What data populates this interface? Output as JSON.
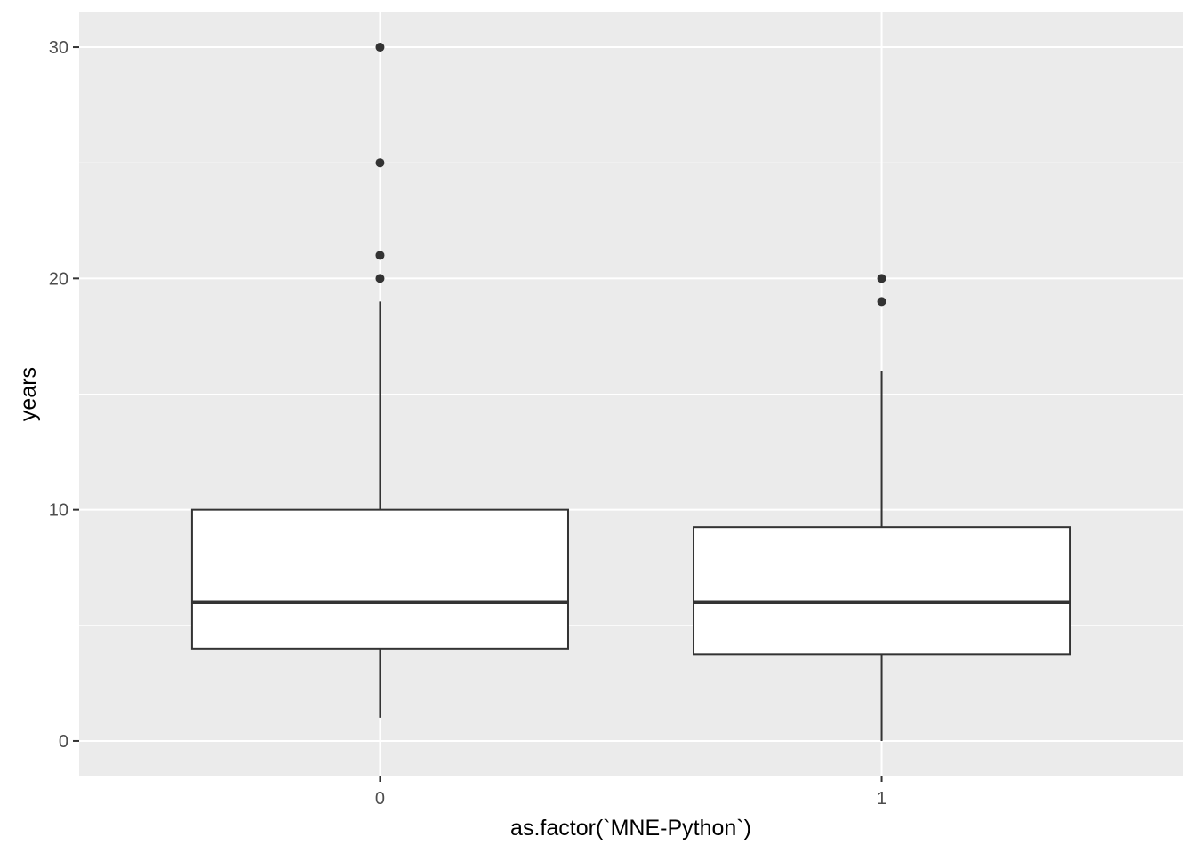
{
  "chart_data": {
    "type": "boxplot",
    "xlabel": "as.factor(`MNE-Python`)",
    "ylabel": "years",
    "ylim": [
      -1.5,
      31.5
    ],
    "yticks": [
      0,
      10,
      20,
      30
    ],
    "ytick_labels": [
      "0",
      "10",
      "20",
      "30"
    ],
    "grid": true,
    "categories": [
      "0",
      "1"
    ],
    "boxes": [
      {
        "category": "0",
        "whisker_low": 1,
        "q1": 4,
        "median": 6,
        "q3": 10,
        "whisker_high": 19,
        "outliers": [
          20,
          21,
          25,
          30
        ]
      },
      {
        "category": "1",
        "whisker_low": 0,
        "q1": 3.75,
        "median": 6,
        "q3": 9.25,
        "whisker_high": 16,
        "outliers": [
          19,
          20
        ]
      }
    ],
    "colors": {
      "panel_background": "#ebebeb",
      "grid": "#ffffff",
      "box_fill": "#ffffff",
      "box_stroke": "#333333",
      "point": "#333333"
    }
  }
}
